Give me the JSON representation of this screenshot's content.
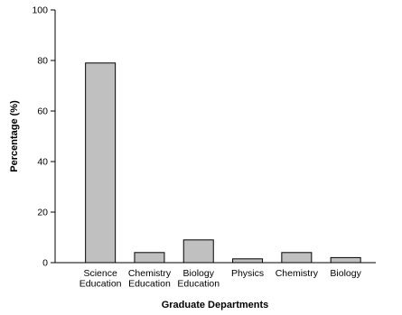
{
  "chart_data": {
    "type": "bar",
    "title": "",
    "xlabel": "Graduate Departments",
    "ylabel": "Percentage (%)",
    "ylim": [
      0,
      100
    ],
    "yticks": [
      0,
      20,
      40,
      60,
      80,
      100
    ],
    "categories": [
      [
        "Science",
        "Education"
      ],
      [
        "Chemistry",
        "Education"
      ],
      [
        "Biology",
        "Education"
      ],
      [
        "Physics"
      ],
      [
        "Chemistry"
      ],
      [
        "Biology"
      ]
    ],
    "values": [
      79,
      4,
      9,
      1.5,
      4,
      2
    ],
    "bar_color": "#c0c0c0",
    "grid": false,
    "legend": "none"
  }
}
